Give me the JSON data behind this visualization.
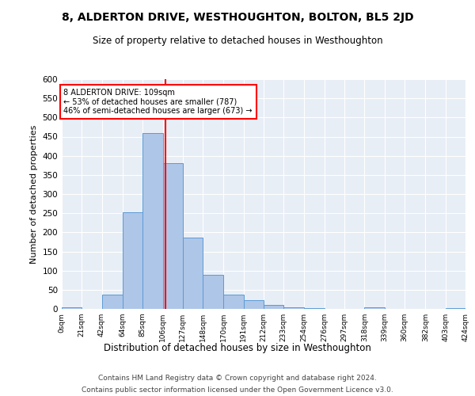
{
  "title": "8, ALDERTON DRIVE, WESTHOUGHTON, BOLTON, BL5 2JD",
  "subtitle": "Size of property relative to detached houses in Westhoughton",
  "xlabel": "Distribution of detached houses by size in Westhoughton",
  "ylabel": "Number of detached properties",
  "bar_color": "#aec6e8",
  "bar_edge_color": "#5b9bd5",
  "bg_color": "#e8eef6",
  "grid_color": "#ffffff",
  "vline_x": 109,
  "vline_color": "red",
  "annotation_text": "8 ALDERTON DRIVE: 109sqm\n← 53% of detached houses are smaller (787)\n46% of semi-detached houses are larger (673) →",
  "annotation_box_color": "white",
  "annotation_box_edge": "red",
  "bin_edges": [
    0,
    21,
    42,
    64,
    85,
    106,
    127,
    148,
    170,
    191,
    212,
    233,
    254,
    276,
    297,
    318,
    339,
    360,
    382,
    403,
    424
  ],
  "bar_heights": [
    5,
    0,
    38,
    252,
    460,
    380,
    187,
    90,
    38,
    22,
    10,
    5,
    3,
    0,
    0,
    5,
    0,
    0,
    0,
    3
  ],
  "tick_labels": [
    "0sqm",
    "21sqm",
    "42sqm",
    "64sqm",
    "85sqm",
    "106sqm",
    "127sqm",
    "148sqm",
    "170sqm",
    "191sqm",
    "212sqm",
    "233sqm",
    "254sqm",
    "276sqm",
    "297sqm",
    "318sqm",
    "339sqm",
    "360sqm",
    "382sqm",
    "403sqm",
    "424sqm"
  ],
  "ylim": [
    0,
    600
  ],
  "yticks": [
    0,
    50,
    100,
    150,
    200,
    250,
    300,
    350,
    400,
    450,
    500,
    550,
    600
  ],
  "footer_line1": "Contains HM Land Registry data © Crown copyright and database right 2024.",
  "footer_line2": "Contains public sector information licensed under the Open Government Licence v3.0."
}
